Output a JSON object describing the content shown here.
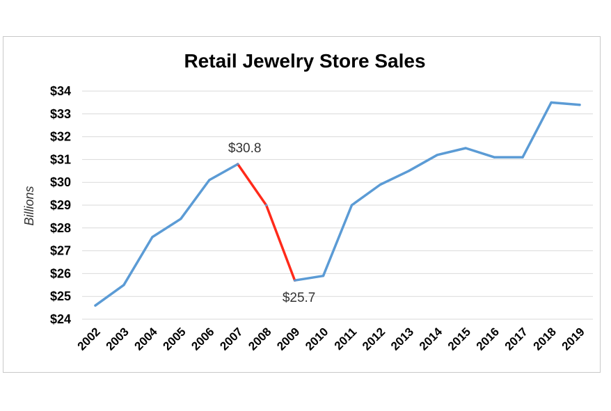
{
  "chart_data": {
    "type": "line",
    "title": "Retail Jewelry Store Sales",
    "ylabel": "Billions",
    "xlabel": "",
    "ylim": [
      24,
      34
    ],
    "y_ticks": [
      "$24",
      "$25",
      "$26",
      "$27",
      "$28",
      "$29",
      "$30",
      "$31",
      "$32",
      "$33",
      "$34"
    ],
    "grid": true,
    "categories": [
      "2002",
      "2003",
      "2004",
      "2005",
      "2006",
      "2007",
      "2008",
      "2009",
      "2010",
      "2011",
      "2012",
      "2013",
      "2014",
      "2015",
      "2016",
      "2017",
      "2018",
      "2019"
    ],
    "series": [
      {
        "values": [
          24.6,
          25.5,
          27.6,
          28.4,
          30.1,
          30.8,
          29.0,
          25.7,
          25.9,
          29.0,
          29.9,
          30.5,
          31.2,
          31.5,
          31.1,
          31.1,
          33.5,
          33.4
        ],
        "color": "#5b9bd5",
        "highlight": {
          "from": "2007",
          "to": "2009",
          "color": "#ff2a1a"
        }
      }
    ],
    "annotations": [
      {
        "category": "2007",
        "value": 30.8,
        "text": "$30.8"
      },
      {
        "category": "2009",
        "value": 25.7,
        "text": "$25.7"
      }
    ]
  }
}
